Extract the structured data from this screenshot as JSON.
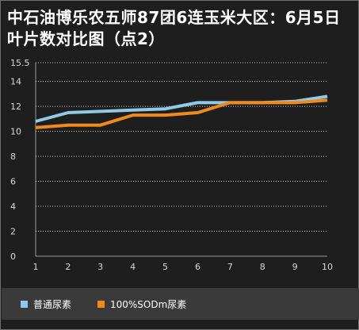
{
  "page": {
    "title": "中石油博乐农五师87团6连玉米大区：6月5日叶片数对比图（点2）"
  },
  "colors": {
    "background": "#1e1e1e",
    "legend_background": "#3a3a3a",
    "grid": "#cfcfcf",
    "axis_text": "#d8d8d8",
    "series_1": "#8fcbe6",
    "series_2": "#f08a1c"
  },
  "chart_data": {
    "type": "line",
    "title": "中石油博乐农五师87团6连玉米大区：6月5日叶片数对比图（点2）",
    "xlabel": "",
    "ylabel": "",
    "x": [
      1,
      2,
      3,
      4,
      5,
      6,
      7,
      8,
      9,
      10
    ],
    "ylim": [
      0,
      15.5
    ],
    "yticks": [
      0,
      2,
      4,
      6,
      8,
      10,
      12,
      14,
      15.5
    ],
    "grid": true,
    "legend_position": "bottom",
    "series": [
      {
        "name": "普通尿素",
        "color": "#8fcbe6",
        "values": [
          10.8,
          11.5,
          11.6,
          11.7,
          11.8,
          12.3,
          12.3,
          12.3,
          12.4,
          12.8
        ]
      },
      {
        "name": "100%SODm尿素",
        "color": "#f08a1c",
        "values": [
          10.3,
          10.5,
          10.5,
          11.3,
          11.3,
          11.5,
          12.3,
          12.3,
          12.3,
          12.5
        ]
      }
    ]
  }
}
